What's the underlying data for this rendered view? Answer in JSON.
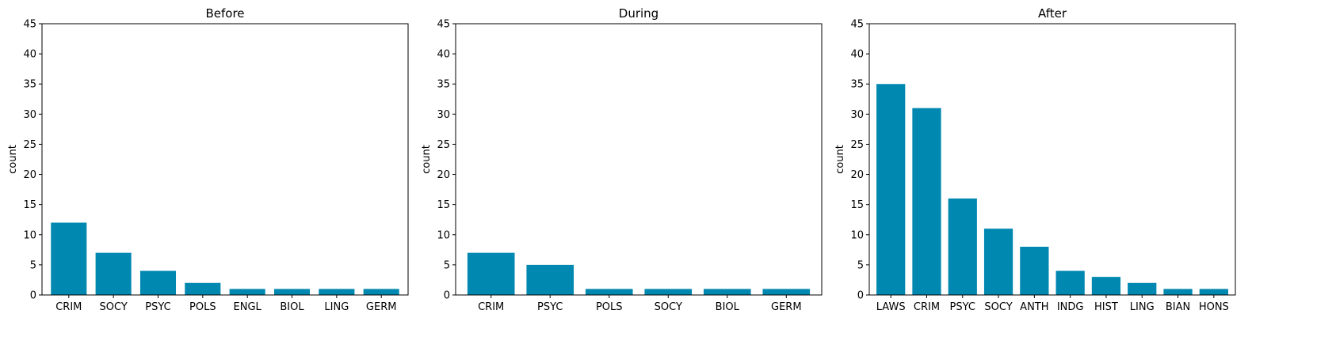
{
  "chart_data": [
    {
      "type": "bar",
      "title": "Before",
      "xlabel": "",
      "ylabel": "count",
      "ylim": [
        0,
        45
      ],
      "yticks": [
        0,
        5,
        10,
        15,
        20,
        25,
        30,
        35,
        40,
        45
      ],
      "grid": false,
      "color": "#0088B0",
      "categories": [
        "CRIM",
        "SOCY",
        "PSYC",
        "POLS",
        "ENGL",
        "BIOL",
        "LING",
        "GERM"
      ],
      "values": [
        12,
        7,
        4,
        2,
        1,
        1,
        1,
        1
      ]
    },
    {
      "type": "bar",
      "title": "During",
      "xlabel": "",
      "ylabel": "count",
      "ylim": [
        0,
        45
      ],
      "yticks": [
        0,
        5,
        10,
        15,
        20,
        25,
        30,
        35,
        40,
        45
      ],
      "grid": false,
      "color": "#0088B0",
      "categories": [
        "CRIM",
        "PSYC",
        "POLS",
        "SOCY",
        "BIOL",
        "GERM"
      ],
      "values": [
        7,
        5,
        1,
        1,
        1,
        1
      ]
    },
    {
      "type": "bar",
      "title": "After",
      "xlabel": "",
      "ylabel": "count",
      "ylim": [
        0,
        45
      ],
      "yticks": [
        0,
        5,
        10,
        15,
        20,
        25,
        30,
        35,
        40,
        45
      ],
      "grid": false,
      "color": "#0088B0",
      "categories": [
        "LAWS",
        "CRIM",
        "PSYC",
        "SOCY",
        "ANTH",
        "INDG",
        "HIST",
        "LING",
        "BIAN",
        "HONS"
      ],
      "values": [
        35,
        31,
        16,
        11,
        8,
        4,
        3,
        2,
        1,
        1
      ]
    }
  ]
}
